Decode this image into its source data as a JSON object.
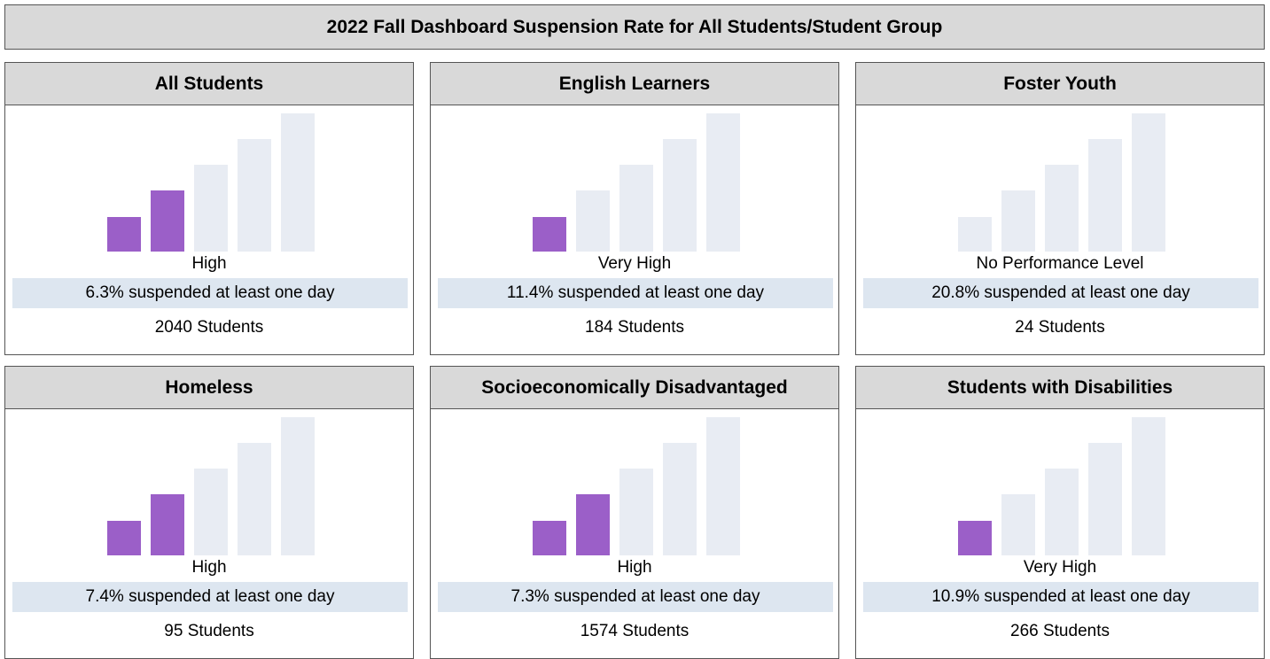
{
  "title": "2022 Fall Dashboard Suspension Rate for All Students/Student Group",
  "cards": [
    {
      "title": "All Students",
      "level": "High",
      "rate": "6.3% suspended at least one day",
      "students": "2040 Students"
    },
    {
      "title": "English Learners",
      "level": "Very High",
      "rate": "11.4% suspended at least one day",
      "students": "184 Students"
    },
    {
      "title": "Foster Youth",
      "level": "No Performance Level",
      "rate": "20.8% suspended at least one day",
      "students": "24 Students"
    },
    {
      "title": "Homeless",
      "level": "High",
      "rate": "7.4% suspended at least one day",
      "students": "95 Students"
    },
    {
      "title": "Socioeconomically Disadvantaged",
      "level": "High",
      "rate": "7.3% suspended at least one day",
      "students": "1574 Students"
    },
    {
      "title": "Students with Disabilities",
      "level": "Very High",
      "rate": "10.9% suspended at least one day",
      "students": "266 Students"
    }
  ]
}
